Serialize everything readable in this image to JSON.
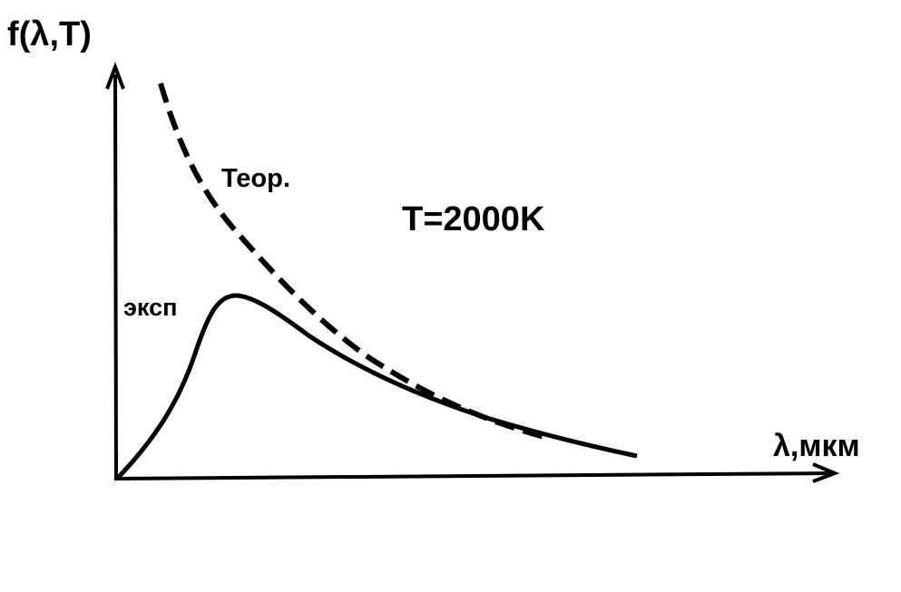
{
  "axes": {
    "y_label": "f(λ,T)",
    "x_label": "λ,мкм"
  },
  "curves": {
    "theory_label": "Теор.",
    "experiment_label": "эксп"
  },
  "annotation": "T=2000K"
}
